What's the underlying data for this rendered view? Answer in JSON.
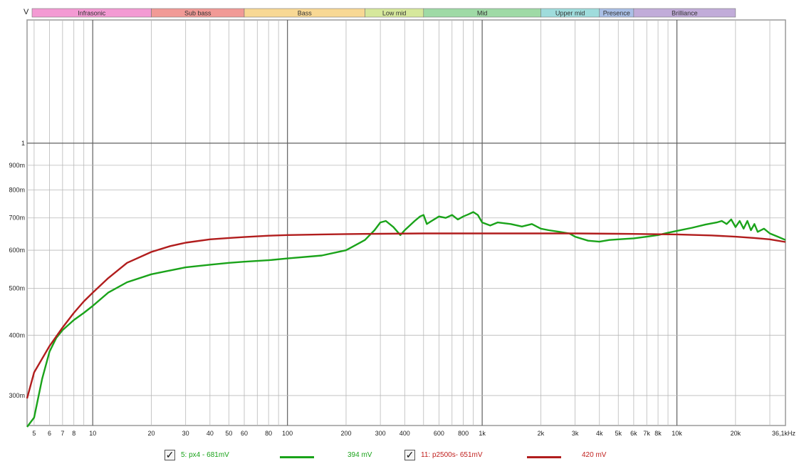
{
  "chart_data": {
    "type": "line",
    "x_scale": "log",
    "y_scale": "log",
    "xlim": [
      4.6,
      36100
    ],
    "ylim": [
      0.26,
      1.8
    ],
    "ylabel": "V",
    "grid": true,
    "x_ticks": [
      {
        "v": 5,
        "label": "5"
      },
      {
        "v": 6,
        "label": "6"
      },
      {
        "v": 7,
        "label": "7"
      },
      {
        "v": 8,
        "label": "8"
      },
      {
        "v": 10,
        "label": "10"
      },
      {
        "v": 20,
        "label": "20"
      },
      {
        "v": 30,
        "label": "30"
      },
      {
        "v": 40,
        "label": "40"
      },
      {
        "v": 50,
        "label": "50"
      },
      {
        "v": 60,
        "label": "60"
      },
      {
        "v": 80,
        "label": "80"
      },
      {
        "v": 100,
        "label": "100"
      },
      {
        "v": 200,
        "label": "200"
      },
      {
        "v": 300,
        "label": "300"
      },
      {
        "v": 400,
        "label": "400"
      },
      {
        "v": 600,
        "label": "600"
      },
      {
        "v": 800,
        "label": "800"
      },
      {
        "v": 1000,
        "label": "1k"
      },
      {
        "v": 2000,
        "label": "2k"
      },
      {
        "v": 3000,
        "label": "3k"
      },
      {
        "v": 4000,
        "label": "4k"
      },
      {
        "v": 5000,
        "label": "5k"
      },
      {
        "v": 6000,
        "label": "6k"
      },
      {
        "v": 7000,
        "label": "7k"
      },
      {
        "v": 8000,
        "label": "8k"
      },
      {
        "v": 10000,
        "label": "10k"
      },
      {
        "v": 20000,
        "label": "20k"
      },
      {
        "v": 36100,
        "label": "36,1kHz"
      }
    ],
    "y_ticks": [
      {
        "v": 1.0,
        "label": "1"
      },
      {
        "v": 0.9,
        "label": "900m"
      },
      {
        "v": 0.8,
        "label": "800m"
      },
      {
        "v": 0.7,
        "label": "700m"
      },
      {
        "v": 0.6,
        "label": "600m"
      },
      {
        "v": 0.5,
        "label": "500m"
      },
      {
        "v": 0.4,
        "label": "400m"
      },
      {
        "v": 0.3,
        "label": "300m"
      }
    ],
    "bands": [
      {
        "label": "Infrasonic",
        "from": 4.6,
        "to": 20,
        "color": "#f39ad3"
      },
      {
        "label": "Sub bass",
        "from": 20,
        "to": 60,
        "color": "#f19a96"
      },
      {
        "label": "Bass",
        "from": 60,
        "to": 250,
        "color": "#f8d894"
      },
      {
        "label": "Low mid",
        "from": 250,
        "to": 500,
        "color": "#d6e89c"
      },
      {
        "label": "Mid",
        "from": 500,
        "to": 2000,
        "color": "#9fdaa6"
      },
      {
        "label": "Upper mid",
        "from": 2000,
        "to": 4000,
        "color": "#9fdcdc"
      },
      {
        "label": "Presence",
        "from": 4000,
        "to": 6000,
        "color": "#a9bfe6"
      },
      {
        "label": "Brilliance",
        "from": 6000,
        "to": 20000,
        "color": "#c1acd9"
      }
    ],
    "series": [
      {
        "name": "5: px4 - 681mV",
        "color": "#1aa31a",
        "x": [
          4.6,
          5,
          5.5,
          6,
          6.5,
          7,
          8,
          9,
          10,
          12,
          15,
          20,
          25,
          30,
          40,
          50,
          60,
          80,
          100,
          150,
          200,
          250,
          280,
          300,
          320,
          350,
          380,
          400,
          450,
          480,
          500,
          520,
          550,
          600,
          650,
          700,
          750,
          800,
          850,
          900,
          950,
          1000,
          1100,
          1200,
          1400,
          1600,
          1800,
          2000,
          2200,
          2500,
          2800,
          3000,
          3500,
          4000,
          4500,
          5000,
          6000,
          7000,
          8000,
          9000,
          10000,
          12000,
          14000,
          16000,
          17000,
          18000,
          19000,
          20000,
          21000,
          22000,
          23000,
          24000,
          25000,
          26000,
          28000,
          30000,
          33000,
          36100
        ],
        "y": [
          0.23,
          0.27,
          0.325,
          0.37,
          0.395,
          0.41,
          0.43,
          0.445,
          0.46,
          0.49,
          0.515,
          0.535,
          0.545,
          0.553,
          0.56,
          0.565,
          0.568,
          0.572,
          0.577,
          0.585,
          0.6,
          0.63,
          0.66,
          0.685,
          0.69,
          0.67,
          0.645,
          0.66,
          0.69,
          0.705,
          0.71,
          0.68,
          0.69,
          0.705,
          0.7,
          0.71,
          0.695,
          0.705,
          0.712,
          0.72,
          0.71,
          0.685,
          0.675,
          0.685,
          0.68,
          0.672,
          0.68,
          0.665,
          0.66,
          0.655,
          0.65,
          0.64,
          0.628,
          0.625,
          0.63,
          0.632,
          0.635,
          0.64,
          0.645,
          0.652,
          0.658,
          0.668,
          0.678,
          0.685,
          0.69,
          0.68,
          0.695,
          0.67,
          0.69,
          0.665,
          0.69,
          0.66,
          0.68,
          0.655,
          0.665,
          0.65,
          0.64,
          0.63
        ],
        "legend_value": "394 mV"
      },
      {
        "name": "11: p2500s- 651mV",
        "color": "#b11d1d",
        "x": [
          4.6,
          5,
          6,
          7,
          8,
          9,
          10,
          12,
          15,
          20,
          25,
          30,
          40,
          50,
          60,
          80,
          100,
          150,
          200,
          300,
          500,
          1000,
          2000,
          3000,
          5000,
          7000,
          10000,
          15000,
          20000,
          25000,
          30000,
          36100
        ],
        "y": [
          0.296,
          0.335,
          0.38,
          0.415,
          0.445,
          0.47,
          0.49,
          0.525,
          0.565,
          0.595,
          0.612,
          0.622,
          0.632,
          0.636,
          0.639,
          0.643,
          0.645,
          0.647,
          0.648,
          0.649,
          0.65,
          0.65,
          0.65,
          0.65,
          0.649,
          0.648,
          0.647,
          0.644,
          0.64,
          0.636,
          0.632,
          0.624
        ],
        "legend_value": "420 mV"
      }
    ]
  },
  "legend": {
    "item1_label": "5: px4 - 681mV",
    "item1_value": "394 mV",
    "item1_checked": "✓",
    "item2_label": "11: p2500s- 651mV",
    "item2_value": "420 mV",
    "item2_checked": "✓"
  }
}
